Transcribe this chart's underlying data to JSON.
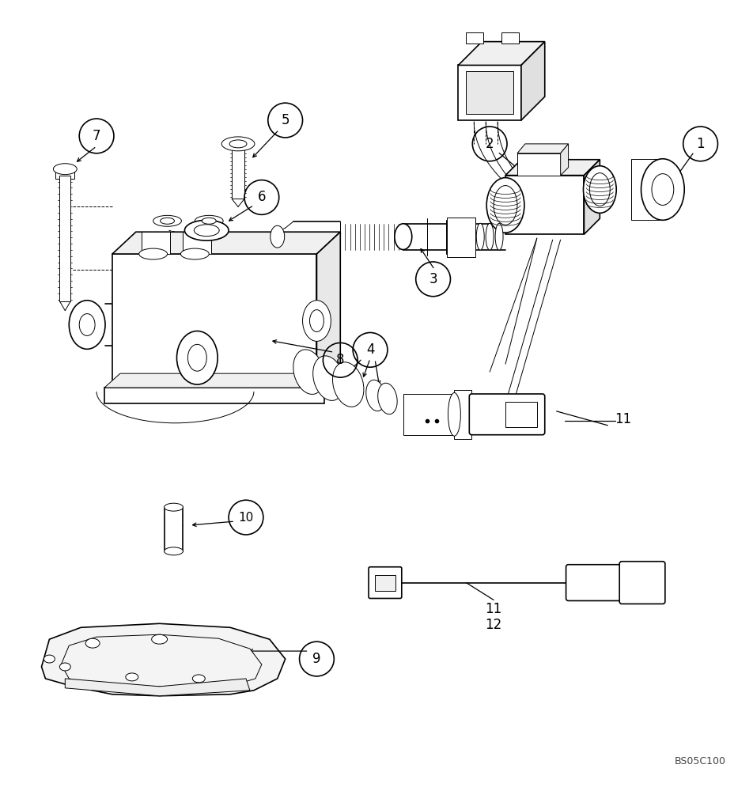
{
  "background_color": "#ffffff",
  "line_color": "#000000",
  "fig_width": 9.52,
  "fig_height": 10.0,
  "watermark": "BS05C100"
}
